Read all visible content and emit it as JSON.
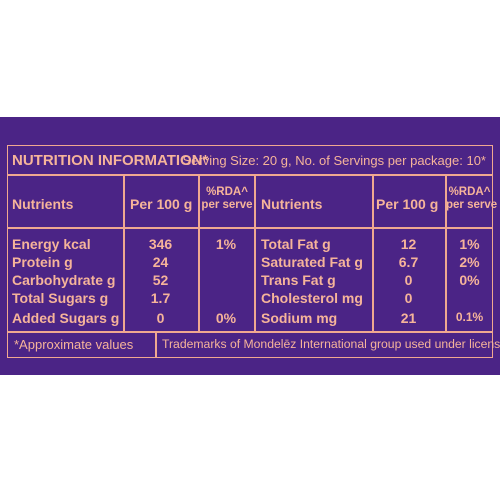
{
  "title": "NUTRITION INFORMATION*",
  "serving": "Serving Size: 20 g, No. of Servings per package: 10*",
  "headers": {
    "nutrients": "Nutrients",
    "per100": "Per 100 g",
    "rda_line1": "%RDA^",
    "rda_line2": "per serve"
  },
  "left_rows": [
    {
      "name": "Energy kcal",
      "per100": "346",
      "rda": "1%"
    },
    {
      "name": "Protein g",
      "per100": "24",
      "rda": ""
    },
    {
      "name": "Carbohydrate g",
      "per100": "52",
      "rda": ""
    },
    {
      "name": "Total Sugars g",
      "per100": "1.7",
      "rda": ""
    },
    {
      "name": "Added Sugars g",
      "per100": "0",
      "rda": "0%"
    }
  ],
  "right_rows": [
    {
      "name": "Total Fat g",
      "per100": "12",
      "rda": "1%"
    },
    {
      "name": "Saturated Fat g",
      "per100": "6.7",
      "rda": "2%"
    },
    {
      "name": "Trans Fat g",
      "per100": "0",
      "rda": "0%"
    },
    {
      "name": "Cholesterol mg",
      "per100": "0",
      "rda": ""
    },
    {
      "name": "Sodium mg",
      "per100": "21",
      "rda": "0.1%"
    }
  ],
  "footer": {
    "approx": "*Approximate values",
    "trademark": "Trademarks of Mondelēz International group used under license"
  },
  "colors": {
    "background": "#4b2486",
    "text": "#f6b49a",
    "rule": "#f0a890"
  }
}
